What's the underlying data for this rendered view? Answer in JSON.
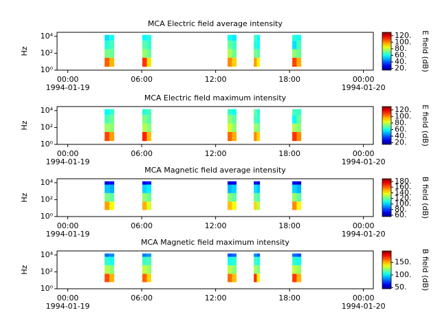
{
  "chart_data": [
    {
      "type": "spectrogram",
      "title": "MCA  Electric field average intensity",
      "ylabel": "Hz",
      "colorbar_label": "E field (dB)",
      "colormap": "jet",
      "log_y": true,
      "xlim": [
        -0.87,
        24.8
      ],
      "xticks": [
        {
          "value": 0,
          "label": "00:00"
        },
        {
          "value": 6,
          "label": "06:00"
        },
        {
          "value": 12,
          "label": "12:00"
        },
        {
          "value": 18,
          "label": "18:00"
        },
        {
          "value": 24,
          "label": "00:00"
        }
      ],
      "xdates": [
        {
          "value": 0,
          "label": "1994-01-19"
        },
        {
          "value": 24,
          "label": "1994-01-20"
        }
      ],
      "ylim": [
        1,
        30000
      ],
      "yticks": [
        {
          "value": 1,
          "label": "10⁰"
        },
        {
          "value": 100,
          "label": "10²"
        },
        {
          "value": 10000,
          "label": "10⁴"
        }
      ],
      "clim": [
        15,
        130
      ],
      "cticks": [
        {
          "value": 20,
          "label": "20."
        },
        {
          "value": 40,
          "label": "40."
        },
        {
          "value": 60,
          "label": "60."
        },
        {
          "value": 80,
          "label": "80."
        },
        {
          "value": 100,
          "label": "100."
        },
        {
          "value": 120,
          "label": "120."
        }
      ],
      "y_bins": [
        2.5,
        30,
        300,
        3000,
        15000
      ],
      "segments": [
        {
          "x": [
            2.99,
            3.38,
            3.77
          ],
          "z": [
            [
              105,
              72,
              62,
              55
            ],
            [
              95,
              70,
              66,
              60
            ]
          ]
        },
        {
          "x": [
            6.05,
            6.42,
            6.78
          ],
          "z": [
            [
              110,
              75,
              68,
              58
            ],
            [
              90,
              70,
              64,
              62
            ]
          ]
        },
        {
          "x": [
            12.97,
            13.33,
            13.7
          ],
          "z": [
            [
              100,
              78,
              70,
              60
            ],
            [
              92,
              70,
              65,
              56
            ]
          ]
        },
        {
          "x": [
            15.1,
            15.35,
            15.6
          ],
          "z": [
            [
              98,
              72,
              62,
              66
            ],
            [
              88,
              68,
              60,
              58
            ]
          ]
        },
        {
          "x": [
            18.22,
            18.58,
            18.95
          ],
          "z": [
            [
              108,
              74,
              55,
              62
            ],
            [
              96,
              70,
              66,
              60
            ]
          ]
        }
      ]
    },
    {
      "type": "spectrogram",
      "title": "MCA  Electric field maximum intensity",
      "ylabel": "Hz",
      "colorbar_label": "E field (dB)",
      "colormap": "jet",
      "log_y": true,
      "xlim": [
        -0.87,
        24.8
      ],
      "xticks": [
        {
          "value": 0,
          "label": "00:00"
        },
        {
          "value": 6,
          "label": "06:00"
        },
        {
          "value": 12,
          "label": "12:00"
        },
        {
          "value": 18,
          "label": "18:00"
        },
        {
          "value": 24,
          "label": "00:00"
        }
      ],
      "xdates": [
        {
          "value": 0,
          "label": "1994-01-19"
        },
        {
          "value": 24,
          "label": "1994-01-20"
        }
      ],
      "ylim": [
        1,
        30000
      ],
      "yticks": [
        {
          "value": 1,
          "label": "10⁰"
        },
        {
          "value": 100,
          "label": "10²"
        },
        {
          "value": 10000,
          "label": "10⁴"
        }
      ],
      "clim": [
        15,
        130
      ],
      "cticks": [
        {
          "value": 20,
          "label": "20."
        },
        {
          "value": 40,
          "label": "40."
        },
        {
          "value": 60,
          "label": "60."
        },
        {
          "value": 80,
          "label": "80."
        },
        {
          "value": 100,
          "label": "100."
        },
        {
          "value": 120,
          "label": "120."
        }
      ],
      "y_bins": [
        2.5,
        30,
        300,
        3000,
        15000
      ],
      "segments": [
        {
          "x": [
            2.99,
            3.38,
            3.77
          ],
          "z": [
            [
              108,
              76,
              66,
              58
            ],
            [
              98,
              74,
              70,
              64
            ]
          ]
        },
        {
          "x": [
            6.05,
            6.42,
            6.78
          ],
          "z": [
            [
              112,
              78,
              72,
              62
            ],
            [
              94,
              74,
              68,
              66
            ]
          ]
        },
        {
          "x": [
            12.97,
            13.33,
            13.7
          ],
          "z": [
            [
              104,
              82,
              74,
              64
            ],
            [
              96,
              74,
              69,
              60
            ]
          ]
        },
        {
          "x": [
            15.1,
            15.35,
            15.6
          ],
          "z": [
            [
              100,
              76,
              66,
              70
            ],
            [
              92,
              72,
              64,
              62
            ]
          ]
        },
        {
          "x": [
            18.22,
            18.58,
            18.95
          ],
          "z": [
            [
              110,
              78,
              58,
              66
            ],
            [
              100,
              74,
              70,
              64
            ]
          ]
        }
      ]
    },
    {
      "type": "spectrogram",
      "title": "MCA  Magnetic field average intensity",
      "ylabel": "Hz",
      "colorbar_label": "B field (dB)",
      "colormap": "jet",
      "log_y": true,
      "xlim": [
        -0.87,
        24.8
      ],
      "xticks": [
        {
          "value": 0,
          "label": "00:00"
        },
        {
          "value": 6,
          "label": "06:00"
        },
        {
          "value": 12,
          "label": "12:00"
        },
        {
          "value": 18,
          "label": "18:00"
        },
        {
          "value": 24,
          "label": "00:00"
        }
      ],
      "xdates": [
        {
          "value": 0,
          "label": "1994-01-19"
        },
        {
          "value": 24,
          "label": "1994-01-20"
        }
      ],
      "ylim": [
        1,
        30000
      ],
      "yticks": [
        {
          "value": 1,
          "label": "10⁰"
        },
        {
          "value": 100,
          "label": "10²"
        },
        {
          "value": 10000,
          "label": "10⁴"
        }
      ],
      "clim": [
        55,
        190
      ],
      "cticks": [
        {
          "value": 60,
          "label": "60."
        },
        {
          "value": 80,
          "label": "80."
        },
        {
          "value": 100,
          "label": "100."
        },
        {
          "value": 120,
          "label": "120."
        },
        {
          "value": 140,
          "label": "140."
        },
        {
          "value": 160,
          "label": "160."
        },
        {
          "value": 180,
          "label": "180."
        }
      ],
      "y_bins": [
        6,
        60,
        600,
        6000,
        15000
      ],
      "segments": [
        {
          "x": [
            2.99,
            3.38,
            3.77
          ],
          "z": [
            [
              152,
              122,
              98,
              68
            ],
            [
              140,
              118,
              95,
              72
            ]
          ]
        },
        {
          "x": [
            6.05,
            6.42,
            6.78
          ],
          "z": [
            [
              150,
              125,
              100,
              70
            ],
            [
              135,
              120,
              104,
              75
            ]
          ]
        },
        {
          "x": [
            12.97,
            13.33,
            13.7
          ],
          "z": [
            [
              148,
              124,
              96,
              66
            ],
            [
              138,
              118,
              100,
              70
            ]
          ]
        },
        {
          "x": [
            15.1,
            15.35,
            15.6
          ],
          "z": [
            [
              145,
              120,
              102,
              72
            ],
            [
              130,
              116,
              98,
              68
            ]
          ]
        },
        {
          "x": [
            18.22,
            18.58,
            18.95
          ],
          "z": [
            [
              155,
              126,
              100,
              70
            ],
            [
              140,
              118,
              96,
              66
            ]
          ]
        }
      ]
    },
    {
      "type": "spectrogram",
      "title": "MCA  Magnetic field maximum intensity",
      "ylabel": "Hz",
      "colorbar_label": "B field (dB)",
      "colormap": "jet",
      "log_y": true,
      "xlim": [
        -0.87,
        24.8
      ],
      "xticks": [
        {
          "value": 0,
          "label": "00:00"
        },
        {
          "value": 6,
          "label": "06:00"
        },
        {
          "value": 12,
          "label": "12:00"
        },
        {
          "value": 18,
          "label": "18:00"
        },
        {
          "value": 24,
          "label": "00:00"
        }
      ],
      "xdates": [
        {
          "value": 0,
          "label": "1994-01-19"
        },
        {
          "value": 24,
          "label": "1994-01-20"
        }
      ],
      "ylim": [
        1,
        30000
      ],
      "yticks": [
        {
          "value": 1,
          "label": "10⁰"
        },
        {
          "value": 100,
          "label": "10²"
        },
        {
          "value": 10000,
          "label": "10⁴"
        }
      ],
      "clim": [
        45,
        195
      ],
      "cticks": [
        {
          "value": 50,
          "label": "50."
        },
        {
          "value": 100,
          "label": "100."
        },
        {
          "value": 150,
          "label": "150."
        }
      ],
      "y_bins": [
        6,
        60,
        600,
        6000,
        15000
      ],
      "segments": [
        {
          "x": [
            2.99,
            3.38,
            3.77
          ],
          "z": [
            [
              165,
              128,
              108,
              80
            ],
            [
              150,
              122,
              104,
              84
            ]
          ]
        },
        {
          "x": [
            6.05,
            6.42,
            6.78
          ],
          "z": [
            [
              162,
              130,
              110,
              82
            ],
            [
              145,
              124,
              112,
              86
            ]
          ]
        },
        {
          "x": [
            12.97,
            13.33,
            13.7
          ],
          "z": [
            [
              160,
              128,
              104,
              76
            ],
            [
              148,
              122,
              108,
              80
            ]
          ]
        },
        {
          "x": [
            15.1,
            15.35,
            15.6
          ],
          "z": [
            [
              170,
              126,
              110,
              84
            ],
            [
              140,
              120,
              106,
              78
            ]
          ]
        },
        {
          "x": [
            18.22,
            18.58,
            18.95
          ],
          "z": [
            [
              168,
              130,
              108,
              80
            ],
            [
              150,
              124,
              104,
              76
            ]
          ]
        }
      ]
    }
  ]
}
